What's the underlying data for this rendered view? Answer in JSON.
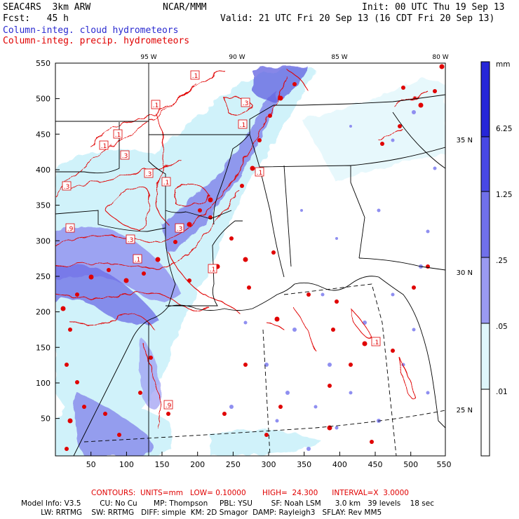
{
  "header": {
    "project": "SEAC4RS  3km ARW",
    "org": "NCAR/MMM",
    "init": "Init: 00 UTC Thu 19 Sep 13",
    "fcst": "Fcst:   45 h",
    "valid": "Valid: 21 UTC Fri 20 Sep 13 (16 CDT Fri 20 Sep 13)",
    "field1": "Column-integ. cloud hydrometeors",
    "field2": "Column-integ. precip. hydrometeors"
  },
  "top_lon_labels": [
    "95 W",
    "90 W",
    "85 W",
    "80 W"
  ],
  "right_lat_labels": [
    "35 N",
    "30 N",
    "25 N"
  ],
  "y_ticks": [
    "550",
    "500",
    "450",
    "400",
    "350",
    "300",
    "250",
    "200",
    "150",
    "100",
    "50"
  ],
  "x_ticks": [
    "50",
    "100",
    "150",
    "200",
    "250",
    "300",
    "350",
    "400",
    "450",
    "500",
    "550"
  ],
  "colorbar": {
    "unit": "mm",
    "labels": [
      "6.25",
      "1.25",
      ".25",
      ".05",
      ".01"
    ],
    "colors": [
      "#2626d8",
      "#4848e4",
      "#7070ea",
      "#9a9af2",
      "#c8c8fa",
      "#dff6fb",
      "#ffffff"
    ]
  },
  "contour_labels": [
    ".1",
    ".1",
    ".1",
    ".1",
    ".3",
    ".3",
    ".1",
    ".1",
    ".3",
    ".3",
    ".1",
    ".9",
    ".3",
    ".3",
    ".1",
    ".1",
    ".1",
    ".9"
  ],
  "footer": {
    "contours": "CONTOURS:  UNITS=mm   LOW= 0.10000       HIGH=  24.300      INTERVAL=X  3.0000",
    "line1": "Model Info: V3.5        CU: No Cu       MP: Thompson     PBL: YSU        SF: Noah LSM      3.0 km   39 levels    18 sec",
    "line2": "               LW: RRTMG    SW: RRTMG   DIFF: simple  KM: 2D Smagor  DAMP: Rayleigh3   SFLAY: Rev MM5"
  },
  "colors": {
    "cloud": "#4d4dd9",
    "precip": "#e00000"
  }
}
